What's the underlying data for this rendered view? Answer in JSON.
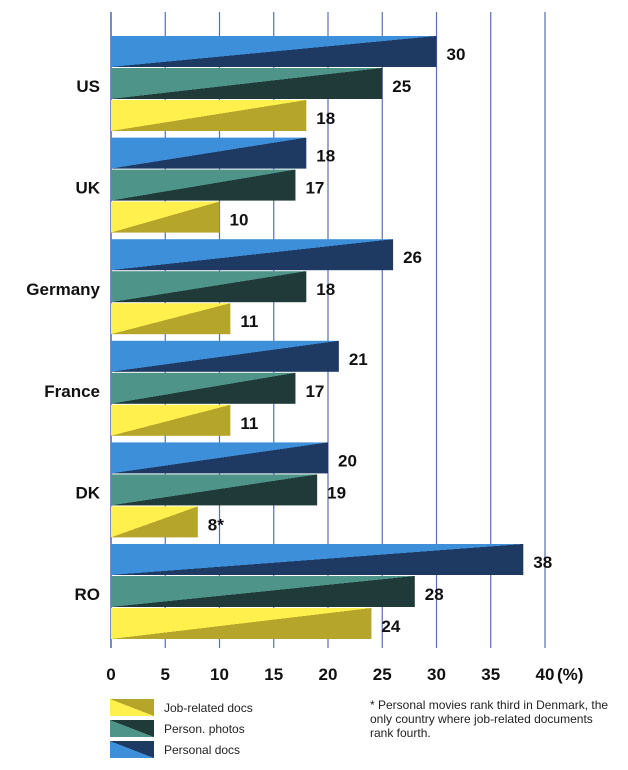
{
  "chart_data": {
    "type": "bar",
    "orientation": "horizontal",
    "categories": [
      "US",
      "UK",
      "Germany",
      "France",
      "DK",
      "RO"
    ],
    "series": [
      {
        "name": "Personal docs",
        "values": [
          30,
          18,
          26,
          21,
          20,
          38
        ],
        "labels": [
          "30",
          "18",
          "26",
          "21",
          "20",
          "38"
        ],
        "color_light": "#3d8fd9",
        "color_dark": "#1e3a63"
      },
      {
        "name": "Person. photos",
        "values": [
          25,
          17,
          18,
          17,
          19,
          28
        ],
        "labels": [
          "25",
          "17",
          "18",
          "17",
          "19",
          "28"
        ],
        "color_light": "#4f9488",
        "color_dark": "#1f3a38"
      },
      {
        "name": "Job-related docs",
        "values": [
          18,
          10,
          11,
          11,
          8,
          24
        ],
        "labels": [
          "18",
          "10",
          "11",
          "11",
          "8*",
          "24"
        ],
        "color_light": "#fff04d",
        "color_dark": "#b5a52a"
      }
    ],
    "xlim": [
      0,
      40
    ],
    "xticks": [
      "0",
      "5",
      "10",
      "15",
      "20",
      "25",
      "30",
      "35",
      "40"
    ],
    "xunit": "(%)",
    "grid": true,
    "legend_order": [
      "Job-related docs",
      "Person. photos",
      "Personal docs"
    ]
  },
  "footnote": "* Personal movies rank third in Denmark, the only country where job-related documents rank fourth."
}
